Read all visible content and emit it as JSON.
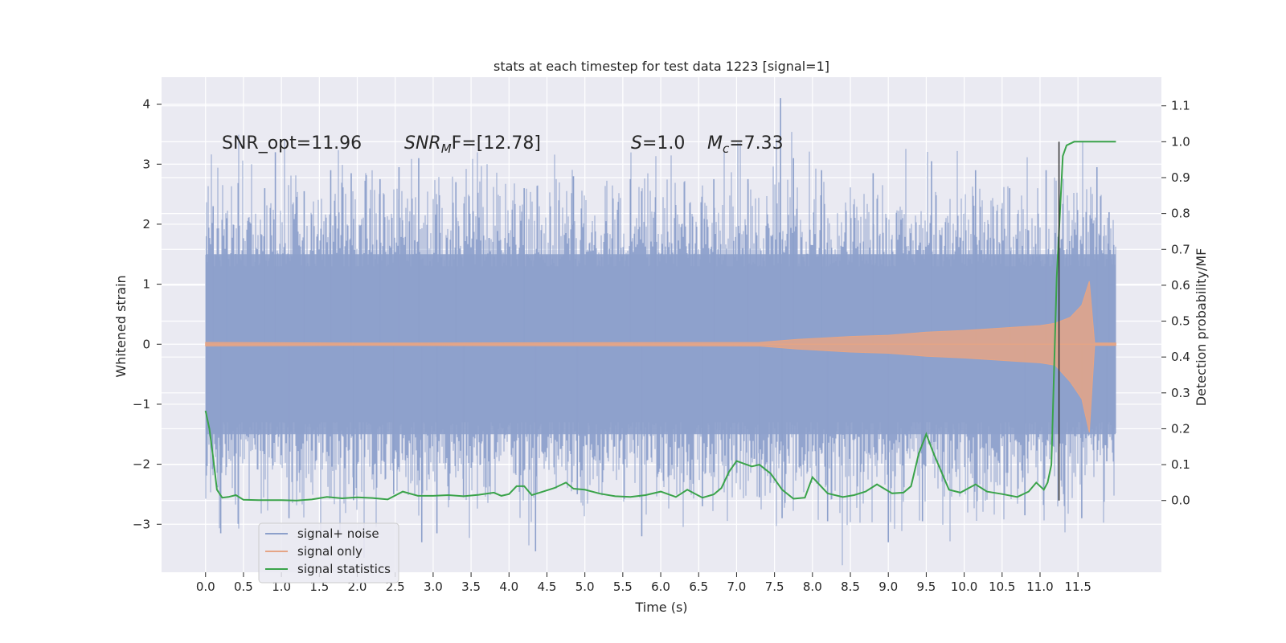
{
  "chart_data": {
    "type": "line",
    "title": "stats at each timestep for test data 1223 [signal=1]",
    "xlabel": "Time (s)",
    "ylabel_left": "Whitened strain",
    "ylabel_right": "Detection probability/MF",
    "xlim": [
      -0.58,
      12.6
    ],
    "ylim_left": [
      -3.8,
      4.45
    ],
    "ylim_right": [
      -0.2,
      1.18
    ],
    "xticks": [
      0.0,
      0.5,
      1.0,
      1.5,
      2.0,
      2.5,
      3.0,
      3.5,
      4.0,
      4.5,
      5.0,
      5.5,
      6.0,
      6.5,
      7.0,
      7.5,
      8.0,
      8.5,
      9.0,
      9.5,
      10.0,
      10.5,
      11.0,
      11.5
    ],
    "xtick_labels": [
      "0.0",
      "0.5",
      "1.0",
      "1.5",
      "2.0",
      "2.5",
      "3.0",
      "3.5",
      "4.0",
      "4.5",
      "5.0",
      "5.5",
      "6.0",
      "6.5",
      "7.0",
      "7.5",
      "8.0",
      "8.5",
      "9.0",
      "9.5",
      "10.0",
      "10.5",
      "11.0",
      "11.5"
    ],
    "yticks_left": [
      -3,
      -2,
      -1,
      0,
      1,
      2,
      3,
      4
    ],
    "ytick_labels_left": [
      "−3",
      "−2",
      "−1",
      "0",
      "1",
      "2",
      "3",
      "4"
    ],
    "yticks_right": [
      0.0,
      0.1,
      0.2,
      0.3,
      0.4,
      0.5,
      0.6,
      0.7,
      0.8,
      0.9,
      1.0,
      1.1
    ],
    "ytick_labels_right": [
      "0.0",
      "0.1",
      "0.2",
      "0.3",
      "0.4",
      "0.5",
      "0.6",
      "0.7",
      "0.8",
      "0.9",
      "1.0",
      "1.1"
    ],
    "grid": true,
    "legend": {
      "placement": "lower-left",
      "entries": [
        {
          "label": "signal+ noise",
          "color": "#8da0cb"
        },
        {
          "label": "signal only",
          "color": "#e5a586"
        },
        {
          "label": "signal statistics",
          "color": "#3aa34a"
        }
      ]
    },
    "annotations": {
      "snr_opt": "SNR_opt=11.96",
      "snr_mf_name": "SNR",
      "snr_mf_sub": "M",
      "snr_mf_rest": "F=[12.78]",
      "s_name": "S",
      "s_rest": "=1.0",
      "mc_name": "M",
      "mc_sub": "c",
      "mc_rest": "=7.33"
    },
    "series": [
      {
        "name": "signal+ noise",
        "axis": "left",
        "color": "#8da0cb",
        "t_range": [
          0.0,
          12.0
        ],
        "typical_band": [
          -1.5,
          1.5
        ],
        "peak_max": [
          [
            0.01,
            1.8
          ],
          [
            0.1,
            2.3
          ],
          [
            0.28,
            2.1
          ],
          [
            0.92,
            3.2
          ],
          [
            0.78,
            2.6
          ],
          [
            1.3,
            2.55
          ],
          [
            1.65,
            2.9
          ],
          [
            1.92,
            2.85
          ],
          [
            2.3,
            2.75
          ],
          [
            2.55,
            2.95
          ],
          [
            2.81,
            3.1
          ],
          [
            3.3,
            2.7
          ],
          [
            4.2,
            2.6
          ],
          [
            4.85,
            2.8
          ],
          [
            5.6,
            2.75
          ],
          [
            5.93,
            2.45
          ],
          [
            6.7,
            2.75
          ],
          [
            7.15,
            2.75
          ],
          [
            7.58,
            4.1
          ],
          [
            7.75,
            3.1
          ],
          [
            8.12,
            2.9
          ],
          [
            8.8,
            2.85
          ],
          [
            9.57,
            3.05
          ],
          [
            10.15,
            2.9
          ],
          [
            10.6,
            2.6
          ],
          [
            11.08,
            2.9
          ],
          [
            11.75,
            2.95
          ],
          [
            11.91,
            2.2
          ]
        ],
        "peak_min": [
          [
            0.02,
            -1.6
          ],
          [
            0.2,
            -2.0
          ],
          [
            0.2,
            -3.15
          ],
          [
            1.1,
            -2.9
          ],
          [
            1.95,
            -2.6
          ],
          [
            2.48,
            -2.5
          ],
          [
            2.85,
            -3.3
          ],
          [
            3.05,
            -3.15
          ],
          [
            3.4,
            -2.55
          ],
          [
            4.35,
            -3.45
          ],
          [
            4.9,
            -2.5
          ],
          [
            5.75,
            -3.2
          ],
          [
            6.55,
            -2.7
          ],
          [
            7.3,
            -2.55
          ],
          [
            7.6,
            -2.9
          ],
          [
            8.2,
            -2.95
          ],
          [
            9.0,
            -3.3
          ],
          [
            9.45,
            -2.95
          ],
          [
            10.8,
            -2.85
          ],
          [
            11.55,
            -2.9
          ],
          [
            11.88,
            -1.95
          ]
        ]
      },
      {
        "name": "signal only",
        "axis": "left",
        "color": "#e5a586",
        "t_range": [
          0.0,
          12.0
        ],
        "envelope": [
          [
            0.0,
            0.03
          ],
          [
            2.0,
            0.02
          ],
          [
            7.3,
            0.03
          ],
          [
            7.8,
            0.08
          ],
          [
            8.5,
            0.13
          ],
          [
            9.0,
            0.15
          ],
          [
            9.5,
            0.2
          ],
          [
            10.0,
            0.23
          ],
          [
            10.5,
            0.27
          ],
          [
            11.0,
            0.31
          ],
          [
            11.2,
            0.35
          ],
          [
            11.4,
            0.45
          ],
          [
            11.55,
            0.65
          ],
          [
            11.65,
            1.05
          ],
          [
            11.72,
            0.02
          ],
          [
            12.0,
            0.02
          ]
        ]
      },
      {
        "name": "signal statistics",
        "axis": "right",
        "color": "#3aa34a",
        "points": [
          [
            0.0,
            0.25
          ],
          [
            0.05,
            0.2
          ],
          [
            0.1,
            0.12
          ],
          [
            0.15,
            0.03
          ],
          [
            0.22,
            0.008
          ],
          [
            0.3,
            0.01
          ],
          [
            0.4,
            0.015
          ],
          [
            0.5,
            0.002
          ],
          [
            0.7,
            0.001
          ],
          [
            1.0,
            0.001
          ],
          [
            1.2,
            0.0
          ],
          [
            1.4,
            0.003
          ],
          [
            1.6,
            0.01
          ],
          [
            1.8,
            0.006
          ],
          [
            2.0,
            0.009
          ],
          [
            2.2,
            0.007
          ],
          [
            2.4,
            0.003
          ],
          [
            2.6,
            0.025
          ],
          [
            2.8,
            0.013
          ],
          [
            3.0,
            0.013
          ],
          [
            3.2,
            0.015
          ],
          [
            3.4,
            0.012
          ],
          [
            3.6,
            0.016
          ],
          [
            3.8,
            0.022
          ],
          [
            3.9,
            0.013
          ],
          [
            4.0,
            0.018
          ],
          [
            4.1,
            0.04
          ],
          [
            4.2,
            0.04
          ],
          [
            4.3,
            0.015
          ],
          [
            4.45,
            0.025
          ],
          [
            4.6,
            0.035
          ],
          [
            4.75,
            0.05
          ],
          [
            4.85,
            0.033
          ],
          [
            5.0,
            0.03
          ],
          [
            5.2,
            0.019
          ],
          [
            5.4,
            0.012
          ],
          [
            5.6,
            0.01
          ],
          [
            5.8,
            0.015
          ],
          [
            6.0,
            0.025
          ],
          [
            6.2,
            0.01
          ],
          [
            6.35,
            0.03
          ],
          [
            6.55,
            0.008
          ],
          [
            6.7,
            0.017
          ],
          [
            6.8,
            0.035
          ],
          [
            6.9,
            0.08
          ],
          [
            7.0,
            0.11
          ],
          [
            7.2,
            0.095
          ],
          [
            7.3,
            0.1
          ],
          [
            7.45,
            0.075
          ],
          [
            7.6,
            0.03
          ],
          [
            7.75,
            0.005
          ],
          [
            7.9,
            0.008
          ],
          [
            8.0,
            0.065
          ],
          [
            8.2,
            0.02
          ],
          [
            8.4,
            0.01
          ],
          [
            8.55,
            0.015
          ],
          [
            8.7,
            0.025
          ],
          [
            8.85,
            0.045
          ],
          [
            9.05,
            0.02
          ],
          [
            9.2,
            0.022
          ],
          [
            9.3,
            0.04
          ],
          [
            9.4,
            0.13
          ],
          [
            9.5,
            0.185
          ],
          [
            9.6,
            0.13
          ],
          [
            9.8,
            0.03
          ],
          [
            9.95,
            0.022
          ],
          [
            10.15,
            0.045
          ],
          [
            10.3,
            0.025
          ],
          [
            10.5,
            0.018
          ],
          [
            10.7,
            0.01
          ],
          [
            10.85,
            0.025
          ],
          [
            10.95,
            0.05
          ],
          [
            11.05,
            0.03
          ],
          [
            11.1,
            0.05
          ],
          [
            11.15,
            0.1
          ],
          [
            11.22,
            0.62
          ],
          [
            11.3,
            0.96
          ],
          [
            11.35,
            0.99
          ],
          [
            11.45,
            1.0
          ],
          [
            12.0,
            1.0
          ]
        ]
      }
    ],
    "marker_line": {
      "x": 11.25,
      "y_range": [
        0.0,
        1.0
      ],
      "color": "#333333"
    }
  }
}
